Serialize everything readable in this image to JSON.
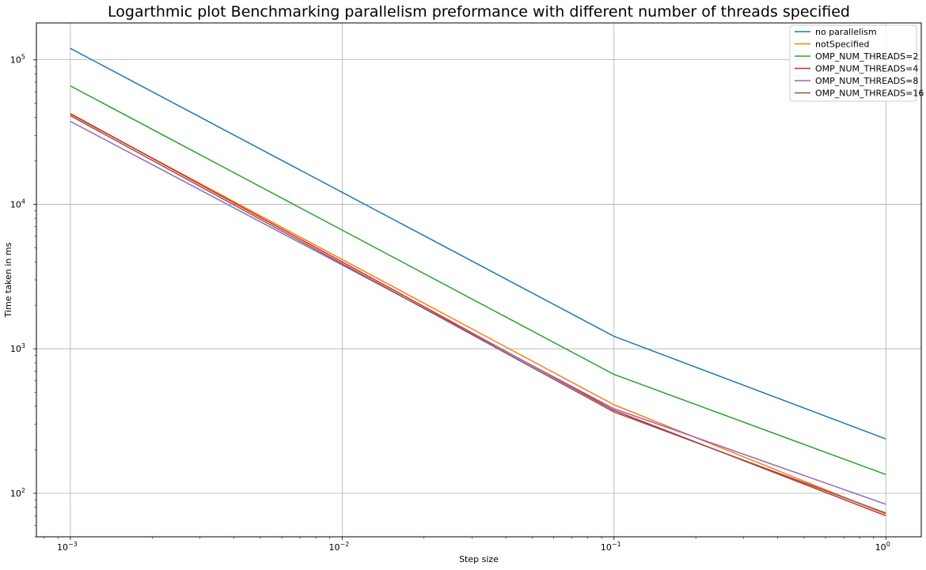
{
  "chart_data": {
    "type": "line",
    "title": "Logarthmic plot Benchmarking parallelism preformance with different number of threads specified",
    "xlabel": "Step size",
    "ylabel": "Time taken in ms",
    "xscale": "log",
    "yscale": "log",
    "xlim": [
      0.00075,
      1.35
    ],
    "ylim": [
      50,
      180000
    ],
    "grid": true,
    "legend_position": "top-right",
    "x": [
      0.001,
      0.1,
      1
    ],
    "x_ticks": [
      {
        "value": 0.001,
        "base": "10",
        "exp": "−3"
      },
      {
        "value": 0.01,
        "base": "10",
        "exp": "−2"
      },
      {
        "value": 0.1,
        "base": "10",
        "exp": "−1"
      },
      {
        "value": 1,
        "base": "10",
        "exp": "0"
      }
    ],
    "y_ticks": [
      {
        "value": 100,
        "base": "10",
        "exp": "2"
      },
      {
        "value": 1000,
        "base": "10",
        "exp": "3"
      },
      {
        "value": 10000,
        "base": "10",
        "exp": "4"
      },
      {
        "value": 100000,
        "base": "10",
        "exp": "5"
      }
    ],
    "series": [
      {
        "name": "no parallelism",
        "color": "#1f77b4",
        "values": [
          120000,
          1220,
          238
        ]
      },
      {
        "name": "notSpecified",
        "color": "#ff7f0e",
        "values": [
          42000,
          410,
          72
        ]
      },
      {
        "name": "OMP_NUM_THREADS=2",
        "color": "#2ca02c",
        "values": [
          66000,
          665,
          135
        ]
      },
      {
        "name": "OMP_NUM_THREADS=4",
        "color": "#d62728",
        "values": [
          42500,
          375,
          70
        ]
      },
      {
        "name": "OMP_NUM_THREADS=8",
        "color": "#9467bd",
        "values": [
          37500,
          385,
          84
        ]
      },
      {
        "name": "OMP_NUM_THREADS=16",
        "color": "#8c564b",
        "values": [
          41000,
          365,
          73
        ]
      }
    ]
  }
}
